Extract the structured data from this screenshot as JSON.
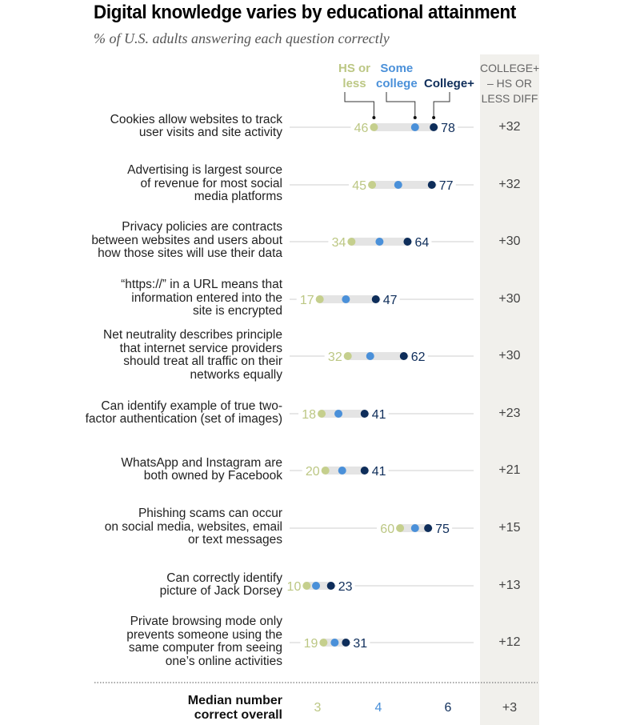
{
  "chart_data": {
    "type": "dot-plot",
    "title": "Digital knowledge varies by educational attainment",
    "subtitle": "% of U.S. adults answering each question correctly",
    "xrange": [
      0,
      100
    ],
    "series": [
      {
        "key": "hs",
        "name": "HS or less",
        "legend_lines": [
          "HS or",
          "less"
        ],
        "color": "#c5cf8d",
        "label_color": "#bcc784"
      },
      {
        "key": "some",
        "name": "Some college",
        "legend_lines": [
          "Some",
          "college"
        ],
        "color": "#4a90d9",
        "label_color": "#4a90d9"
      },
      {
        "key": "college",
        "name": "College+",
        "legend_lines": [
          "College+"
        ],
        "color": "#0e2d5a",
        "label_color": "#0e2d5a"
      }
    ],
    "diff_header": [
      "COLLEGE+",
      "– HS OR",
      "LESS DIFF"
    ],
    "rows": [
      {
        "label_lines": [
          "Cookies allow websites to track",
          "user visits and site activity"
        ],
        "hs": 46,
        "some": 68,
        "college": 78,
        "diff": "+32"
      },
      {
        "label_lines": [
          "Advertising is largest source",
          "of revenue for most social",
          "media platforms"
        ],
        "hs": 45,
        "some": 59,
        "college": 77,
        "diff": "+32"
      },
      {
        "label_lines": [
          "Privacy policies are contracts",
          "between websites and users about",
          "how those sites will use their data"
        ],
        "hs": 34,
        "some": 49,
        "college": 64,
        "diff": "+30"
      },
      {
        "label_lines": [
          "“https://” in a URL means that",
          "information entered into the",
          "site is encrypted"
        ],
        "hs": 17,
        "some": 31,
        "college": 47,
        "diff": "+30"
      },
      {
        "label_lines": [
          "Net neutrality describes principle",
          "that internet service providers",
          "should treat all traffic on their",
          "networks equally"
        ],
        "hs": 32,
        "some": 44,
        "college": 62,
        "diff": "+30"
      },
      {
        "label_lines": [
          "Can identify example of true two-",
          "factor authentication (set of images)"
        ],
        "hs": 18,
        "some": 27,
        "college": 41,
        "diff": "+23"
      },
      {
        "label_lines": [
          "WhatsApp and Instagram are",
          "both owned by Facebook"
        ],
        "hs": 20,
        "some": 29,
        "college": 41,
        "diff": "+21"
      },
      {
        "label_lines": [
          "Phishing scams can occur",
          "on social media, websites, email",
          "or text messages"
        ],
        "hs": 60,
        "some": 68,
        "college": 75,
        "diff": "+15"
      },
      {
        "label_lines": [
          "Can correctly identify",
          "picture of Jack Dorsey"
        ],
        "hs": 10,
        "some": 15,
        "college": 23,
        "diff": "+13"
      },
      {
        "label_lines": [
          "Private browsing mode only",
          "prevents someone using the",
          "same computer from seeing",
          "one’s online activities"
        ],
        "hs": 19,
        "some": 25,
        "college": 31,
        "diff": "+12"
      }
    ],
    "median": {
      "label_lines": [
        "Median number",
        "correct overall"
      ],
      "hs": "3",
      "some": "4",
      "college": "6",
      "diff": "+3"
    }
  }
}
